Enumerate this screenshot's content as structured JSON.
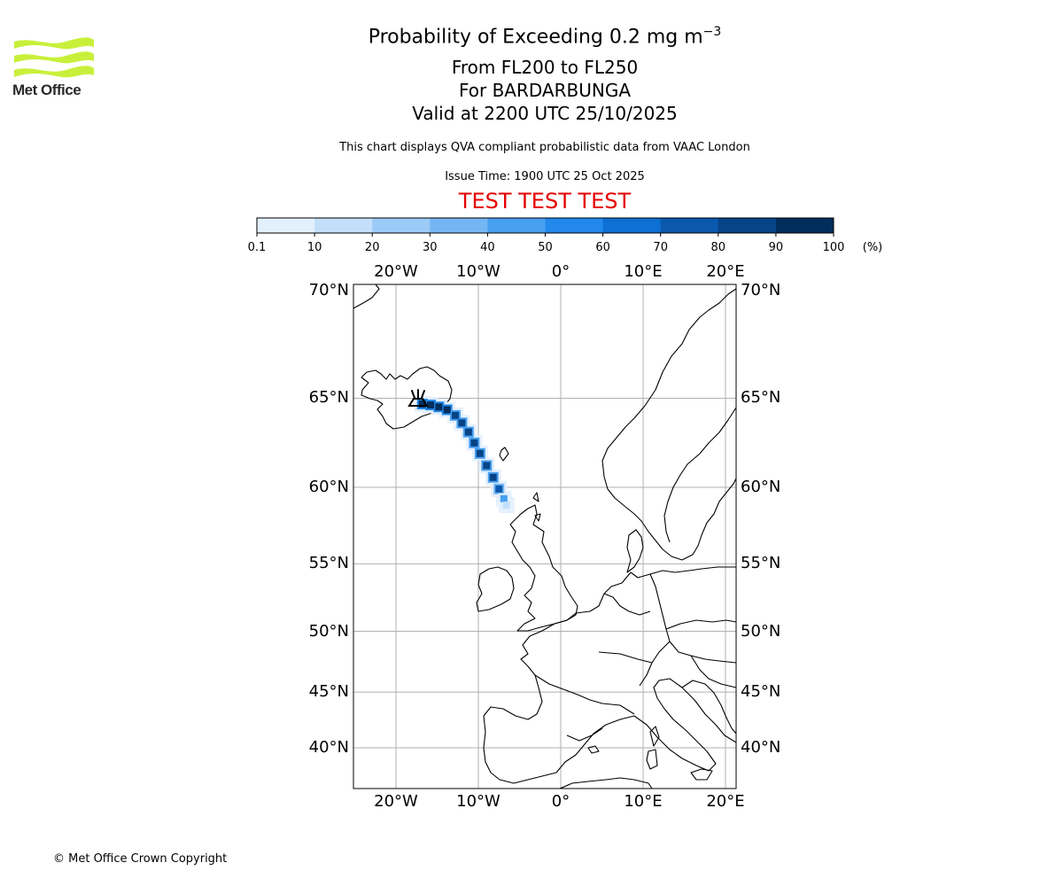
{
  "logo": {
    "text": "Met Office",
    "color": "#c8f03a"
  },
  "header": {
    "title": "Probability of Exceeding 0.2 mg m",
    "title_exp": "−3",
    "level": "From FL200 to FL250",
    "volcano": "For BARDARBUNGA",
    "valid": "Valid at 2200 UTC 25/10/2025",
    "note": "This chart displays QVA compliant probabilistic data from VAAC London",
    "issue": "Issue Time: 1900 UTC 25 Oct 2025",
    "test_banner": "TEST TEST TEST"
  },
  "colorbar": {
    "ticks": [
      "0.1",
      "10",
      "20",
      "30",
      "40",
      "50",
      "60",
      "70",
      "80",
      "90",
      "100"
    ],
    "unit": "(%)",
    "colors": [
      "#e3f0fd",
      "#c3dffa",
      "#9ccbf7",
      "#74b6f4",
      "#48a0f0",
      "#2288ec",
      "#0f70d3",
      "#0a59ad",
      "#064487",
      "#022e5c"
    ]
  },
  "map": {
    "lon_labels": [
      "20°W",
      "10°W",
      "0°",
      "10°E",
      "20°E"
    ],
    "lat_labels": [
      "70°N",
      "65°N",
      "60°N",
      "55°N",
      "50°N",
      "45°N",
      "40°N"
    ],
    "volcano_icon": "volcano-icon"
  },
  "chart_data": {
    "type": "heatmap",
    "title": "Probability of Exceeding 0.2 mg m-3",
    "value_unit": "%",
    "cells": [
      {
        "lon": -16.8,
        "lat": 64.7,
        "value": 95
      },
      {
        "lon": -15.8,
        "lat": 64.65,
        "value": 95
      },
      {
        "lon": -14.8,
        "lat": 64.55,
        "value": 92
      },
      {
        "lon": -13.8,
        "lat": 64.4,
        "value": 90
      },
      {
        "lon": -12.8,
        "lat": 64.1,
        "value": 88
      },
      {
        "lon": -12.0,
        "lat": 63.7,
        "value": 85
      },
      {
        "lon": -11.2,
        "lat": 63.2,
        "value": 85
      },
      {
        "lon": -10.5,
        "lat": 62.6,
        "value": 85
      },
      {
        "lon": -9.8,
        "lat": 62.0,
        "value": 85
      },
      {
        "lon": -9.0,
        "lat": 61.3,
        "value": 85
      },
      {
        "lon": -8.2,
        "lat": 60.6,
        "value": 80
      },
      {
        "lon": -7.5,
        "lat": 59.9,
        "value": 70
      },
      {
        "lon": -6.9,
        "lat": 59.3,
        "value": 40
      },
      {
        "lon": -6.6,
        "lat": 58.9,
        "value": 15
      }
    ]
  },
  "copyright": "© Met Office Crown Copyright"
}
